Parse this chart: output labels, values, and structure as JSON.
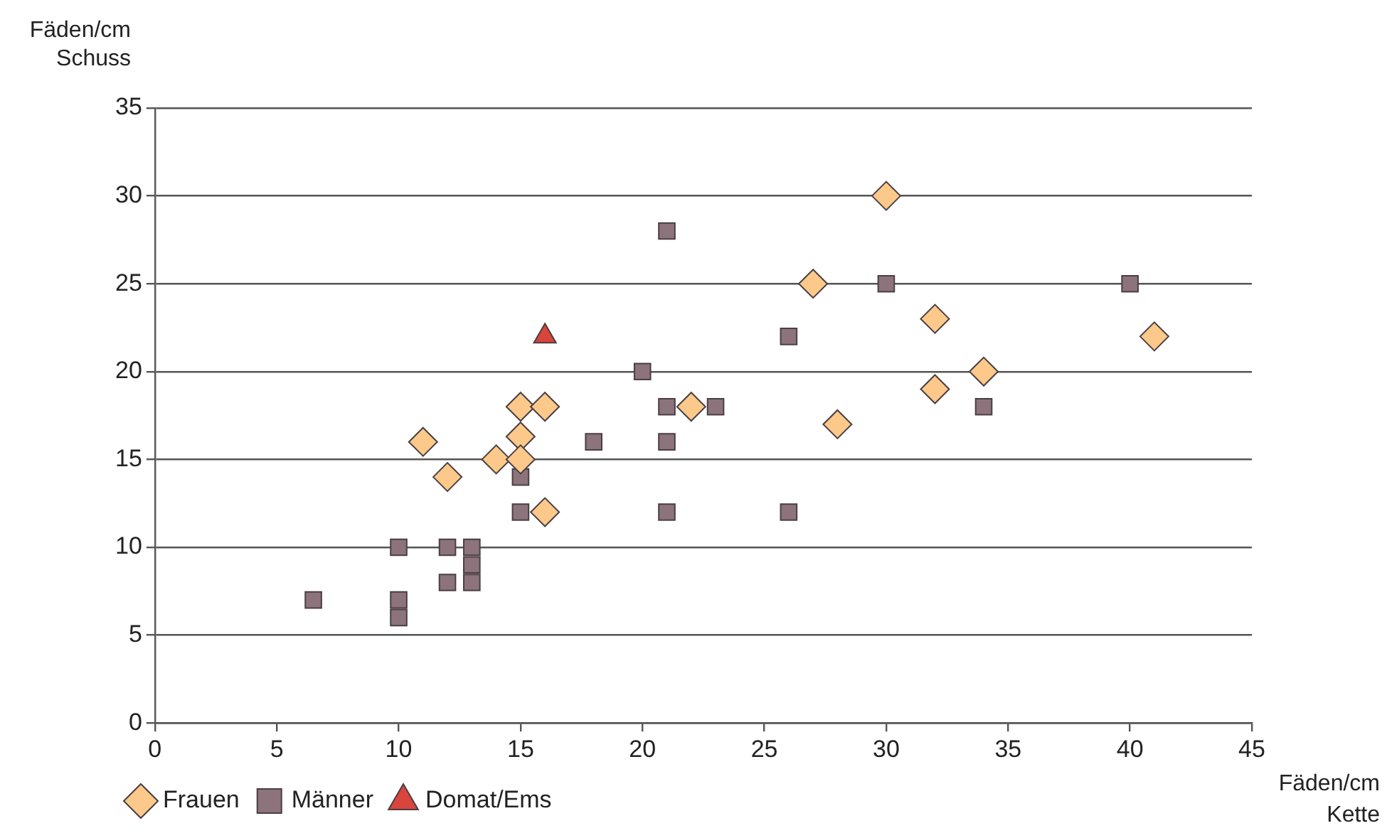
{
  "chart_data": {
    "type": "scatter",
    "xlabel": "Fäden/cm\nKette",
    "ylabel": "Fäden/cm\nSchuss",
    "xlim": [
      0,
      45
    ],
    "xticks": [
      0,
      5,
      10,
      15,
      20,
      25,
      30,
      35,
      40,
      45
    ],
    "ylim": [
      0,
      35
    ],
    "yticks": [
      0,
      5,
      10,
      15,
      20,
      25,
      30,
      35
    ],
    "grid": "y",
    "legend": "bottom left",
    "series": [
      {
        "name": "Frauen",
        "color": "#fcc98a",
        "marker": "diamond",
        "x": [
          11,
          12,
          14,
          15,
          15,
          15,
          16,
          16,
          22,
          27,
          28,
          30,
          32,
          32,
          34,
          41
        ],
        "values": [
          16,
          14,
          15,
          18,
          16.3,
          15,
          18,
          12,
          18,
          25,
          17,
          30,
          23,
          19,
          20,
          22
        ]
      },
      {
        "name": "Männer",
        "color": "#8c737c",
        "marker": "square",
        "x": [
          6.5,
          10,
          10,
          10,
          12,
          12,
          13,
          13,
          13,
          15,
          15,
          18,
          20,
          21,
          21,
          21,
          21,
          23,
          26,
          26,
          30,
          34,
          40
        ],
        "values": [
          7,
          10,
          7,
          6,
          10,
          8,
          10,
          9,
          8,
          14,
          12,
          16,
          20,
          28,
          18,
          16,
          12,
          18,
          22,
          12,
          25,
          18,
          25
        ]
      },
      {
        "name": "Domat/Ems",
        "color": "#d9443c",
        "marker": "triangle",
        "x": [
          16
        ],
        "values": [
          22
        ]
      }
    ]
  }
}
